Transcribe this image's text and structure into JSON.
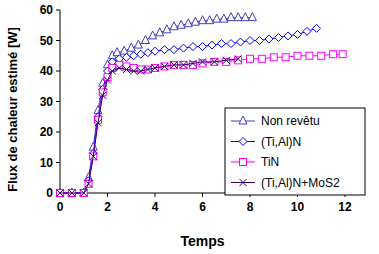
{
  "chart_data": {
    "type": "line",
    "x_label": "Temps",
    "y_label": "Flux de chaleur estimé [W]",
    "xlim": [
      0,
      12
    ],
    "xticks": [
      0,
      2,
      4,
      6,
      8,
      10,
      12
    ],
    "ylim": [
      0,
      60
    ],
    "yticks": [
      0,
      10,
      20,
      30,
      40,
      50,
      60
    ],
    "grid": false,
    "legend": "lower right",
    "series": [
      {
        "name": "Non revêtu",
        "color": "#4040c0",
        "marker": "triangle",
        "x": [
          0,
          0.5,
          1,
          1.2,
          1.4,
          1.6,
          1.8,
          2,
          2.2,
          2.4,
          2.7,
          3,
          3.3,
          3.6,
          3.9,
          4.2,
          4.5,
          4.8,
          5.1,
          5.4,
          5.7,
          6,
          6.3,
          6.6,
          6.9,
          7.2,
          7.5,
          7.8,
          8.1
        ],
        "values": [
          0,
          0,
          0,
          5,
          15,
          27,
          36,
          42,
          45,
          46,
          46.5,
          47.5,
          48.5,
          50,
          51.5,
          52.5,
          53.5,
          54.5,
          55,
          55.5,
          56,
          56.5,
          56.5,
          57,
          57,
          57.5,
          57.5,
          57.5,
          57.5
        ]
      },
      {
        "name": "(Ti,Al)N",
        "color": "#0000ff",
        "marker": "diamond",
        "x": [
          0,
          0.5,
          1,
          1.2,
          1.4,
          1.6,
          1.8,
          2,
          2.2,
          2.5,
          2.8,
          3.1,
          3.4,
          3.7,
          4,
          4.4,
          4.8,
          5.2,
          5.6,
          6,
          6.4,
          6.8,
          7.2,
          7.6,
          8,
          8.4,
          8.8,
          9.2,
          9.6,
          10,
          10.4,
          10.8
        ],
        "values": [
          0,
          0,
          0,
          4,
          13,
          25,
          34,
          40,
          43,
          44,
          44.5,
          45,
          45.5,
          46,
          46.5,
          47,
          47,
          47.5,
          48,
          48,
          48.5,
          49,
          49,
          49.5,
          50,
          50,
          50.5,
          51,
          51.5,
          52,
          53,
          54
        ]
      },
      {
        "name": "TiN",
        "color": "#ff00ff",
        "marker": "square",
        "x": [
          0,
          0.5,
          1,
          1.2,
          1.4,
          1.6,
          1.8,
          2,
          2.2,
          2.5,
          2.8,
          3.1,
          3.4,
          3.7,
          4,
          4.4,
          4.8,
          5.2,
          5.6,
          6,
          6.5,
          7,
          7.5,
          8,
          8.5,
          9,
          9.5,
          10,
          10.5,
          11,
          11.5,
          11.9
        ],
        "values": [
          0,
          0,
          0,
          3,
          12,
          24,
          33,
          38,
          41,
          42,
          41.5,
          41,
          40.5,
          40.5,
          41,
          41.5,
          42,
          42,
          42,
          42.5,
          43,
          43,
          43.5,
          44,
          44,
          44.5,
          44.5,
          45,
          45,
          45,
          45.5,
          45.5
        ]
      },
      {
        "name": "(Ti,Al)N+MoS2",
        "color": "#330066",
        "marker": "x",
        "x": [
          0,
          0.5,
          1,
          1.2,
          1.4,
          1.6,
          1.8,
          2,
          2.2,
          2.5,
          2.8,
          3.1,
          3.4,
          3.7,
          4,
          4.4,
          4.8,
          5.2,
          5.6,
          6,
          6.5,
          7,
          7.5
        ],
        "values": [
          0,
          0,
          0,
          3,
          12,
          23,
          32,
          37,
          40,
          41,
          40.5,
          40,
          40,
          40.5,
          41,
          41.5,
          42,
          42,
          42.5,
          43,
          43,
          43.5,
          44
        ]
      }
    ]
  }
}
